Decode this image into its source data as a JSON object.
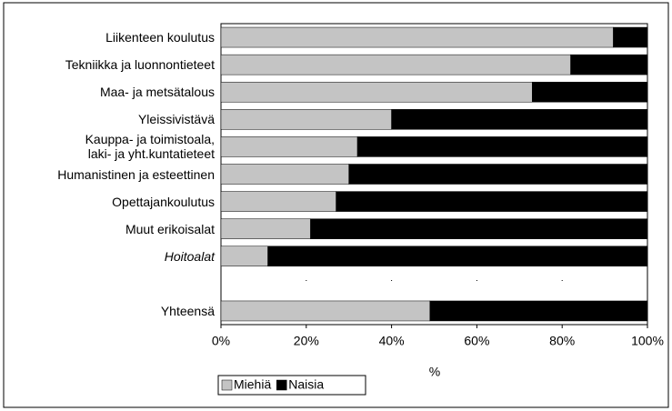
{
  "chart_data": {
    "type": "stacked-bar-horizontal",
    "categories": [
      "Liikenteen koulutus",
      "Tekniikka ja luonnontieteet",
      "Maa- ja metsätalous",
      "Yleissivistävä",
      "Kauppa- ja toimistoala,\nlaki- ja yht.kuntatieteet",
      "Humanistinen ja esteettinen",
      "Opettajankoulutus",
      "Muut erikoisalat",
      "Hoitoalat",
      null,
      "Yhteensä"
    ],
    "series": [
      {
        "name": "Miehiä",
        "color": "#c4c4c4",
        "values": [
          92,
          82,
          73,
          40,
          32,
          30,
          27,
          21,
          11,
          null,
          49
        ]
      },
      {
        "name": "Naisia",
        "color": "#000000",
        "values": [
          8,
          18,
          27,
          60,
          68,
          70,
          73,
          79,
          89,
          null,
          51
        ]
      }
    ],
    "xlabel": "%",
    "xlim": [
      0,
      100
    ],
    "xticks": [
      {
        "value": 0,
        "label": "0%"
      },
      {
        "value": 20,
        "label": "20%"
      },
      {
        "value": 40,
        "label": "40%"
      },
      {
        "value": 60,
        "label": "60%"
      },
      {
        "value": 80,
        "label": "80%"
      },
      {
        "value": 100,
        "label": "100%"
      }
    ],
    "legend": "bottom-left"
  }
}
